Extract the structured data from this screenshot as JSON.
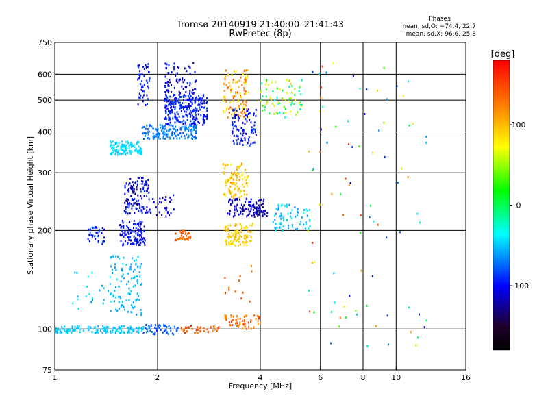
{
  "chart_data": {
    "type": "scatter",
    "title": "Tromsø 20140919 21:40:00–21:41:43",
    "subtitle": "RwPretec (8p)",
    "stats": {
      "heading": "Phases",
      "line_o": "mean, sd,O: −74.4, 22.7",
      "line_x": "mean, sd,X: 96.6, 25.8"
    },
    "xlabel": "Frequency [MHz]",
    "ylabel": "Stationary phase Virtual Height [km]",
    "xscale": "log",
    "yscale": "log",
    "xlim": [
      1,
      16
    ],
    "ylim": [
      75,
      750
    ],
    "xticks": [
      1,
      2,
      4,
      6,
      8,
      10,
      16
    ],
    "xtick_labels": [
      "1",
      "2",
      "4",
      "6",
      "8",
      "10",
      "16"
    ],
    "yticks": [
      75,
      100,
      200,
      300,
      400,
      500,
      600,
      750
    ],
    "ytick_labels": [
      "75",
      "100",
      "200",
      "300",
      "400",
      "500",
      "600",
      "750"
    ],
    "grid_x": [
      2,
      4,
      6,
      8,
      10
    ],
    "grid_y": [
      100,
      200,
      300,
      400,
      500,
      600
    ],
    "colorbar": {
      "label": "[deg]",
      "range": [
        -180,
        180
      ],
      "ticks": [
        100,
        0,
        -100
      ],
      "tick_labels": [
        "100",
        "0",
        "−100"
      ],
      "stops": [
        "#ff0000",
        "#ff7a00",
        "#ffff00",
        "#00ff00",
        "#00ffff",
        "#0000ff",
        "#20002a",
        "#000000"
      ]
    },
    "clusters": [
      {
        "f": [
          1.0,
          1.82
        ],
        "h": [
          97,
          102
        ],
        "phase": [
          -55,
          -45
        ],
        "n": 140
      },
      {
        "f": [
          1.82,
          2.3
        ],
        "h": [
          96,
          103
        ],
        "phase": [
          -90,
          -60
        ],
        "n": 50
      },
      {
        "f": [
          2.35,
          3.1
        ],
        "h": [
          97,
          102
        ],
        "phase": [
          110,
          160
        ],
        "n": 40
      },
      {
        "f": [
          3.15,
          4.0
        ],
        "h": [
          100,
          110
        ],
        "phase": [
          110,
          160
        ],
        "n": 55
      },
      {
        "f": [
          1.45,
          1.8
        ],
        "h": [
          110,
          170
        ],
        "phase": [
          -65,
          -40
        ],
        "n": 110
      },
      {
        "f": [
          1.1,
          1.45
        ],
        "h": [
          115,
          150
        ],
        "phase": [
          -65,
          -35
        ],
        "n": 20
      },
      {
        "f": [
          1.25,
          1.4
        ],
        "h": [
          180,
          205
        ],
        "phase": [
          -110,
          -70
        ],
        "n": 35
      },
      {
        "f": [
          1.55,
          1.85
        ],
        "h": [
          180,
          215
        ],
        "phase": [
          -125,
          -85
        ],
        "n": 110
      },
      {
        "f": [
          1.6,
          1.9
        ],
        "h": [
          225,
          290
        ],
        "phase": [
          -130,
          -85
        ],
        "n": 120
      },
      {
        "f": [
          1.9,
          2.25
        ],
        "h": [
          220,
          260
        ],
        "phase": [
          -130,
          -90
        ],
        "n": 30
      },
      {
        "f": [
          2.25,
          2.5
        ],
        "h": [
          185,
          200
        ],
        "phase": [
          115,
          150
        ],
        "n": 35
      },
      {
        "f": [
          1.45,
          1.8
        ],
        "h": [
          340,
          375
        ],
        "phase": [
          -55,
          -35
        ],
        "n": 120
      },
      {
        "f": [
          1.8,
          2.6
        ],
        "h": [
          380,
          420
        ],
        "phase": [
          -80,
          -60
        ],
        "n": 160
      },
      {
        "f": [
          2.1,
          2.8
        ],
        "h": [
          420,
          520
        ],
        "phase": [
          -110,
          -80
        ],
        "n": 260
      },
      {
        "f": [
          1.75,
          1.9
        ],
        "h": [
          480,
          650
        ],
        "phase": [
          -120,
          -80
        ],
        "n": 50
      },
      {
        "f": [
          2.1,
          2.6
        ],
        "h": [
          520,
          650
        ],
        "phase": [
          -130,
          -90
        ],
        "n": 70
      },
      {
        "f": [
          3.1,
          3.7
        ],
        "h": [
          440,
          620
        ],
        "phase": [
          70,
          150
        ],
        "n": 110
      },
      {
        "f": [
          3.3,
          3.9
        ],
        "h": [
          360,
          470
        ],
        "phase": [
          -110,
          -80
        ],
        "n": 90
      },
      {
        "f": [
          3.1,
          3.7
        ],
        "h": [
          250,
          320
        ],
        "phase": [
          70,
          120
        ],
        "n": 100
      },
      {
        "f": [
          3.2,
          4.2
        ],
        "h": [
          220,
          250
        ],
        "phase": [
          -130,
          -100
        ],
        "n": 110
      },
      {
        "f": [
          3.15,
          3.8
        ],
        "h": [
          180,
          210
        ],
        "phase": [
          70,
          110
        ],
        "n": 100
      },
      {
        "f": [
          4.0,
          5.3
        ],
        "h": [
          440,
          580
        ],
        "phase": [
          -40,
          100
        ],
        "n": 80
      },
      {
        "f": [
          4.3,
          5.6
        ],
        "h": [
          200,
          240
        ],
        "phase": [
          -70,
          -30
        ],
        "n": 70
      },
      {
        "f": [
          3.1,
          3.8
        ],
        "h": [
          120,
          160
        ],
        "phase": [
          120,
          160
        ],
        "n": 12
      },
      {
        "f": [
          5.5,
          12.5
        ],
        "h": [
          85,
          650
        ],
        "phase": [
          -120,
          160
        ],
        "n": 90
      }
    ]
  }
}
